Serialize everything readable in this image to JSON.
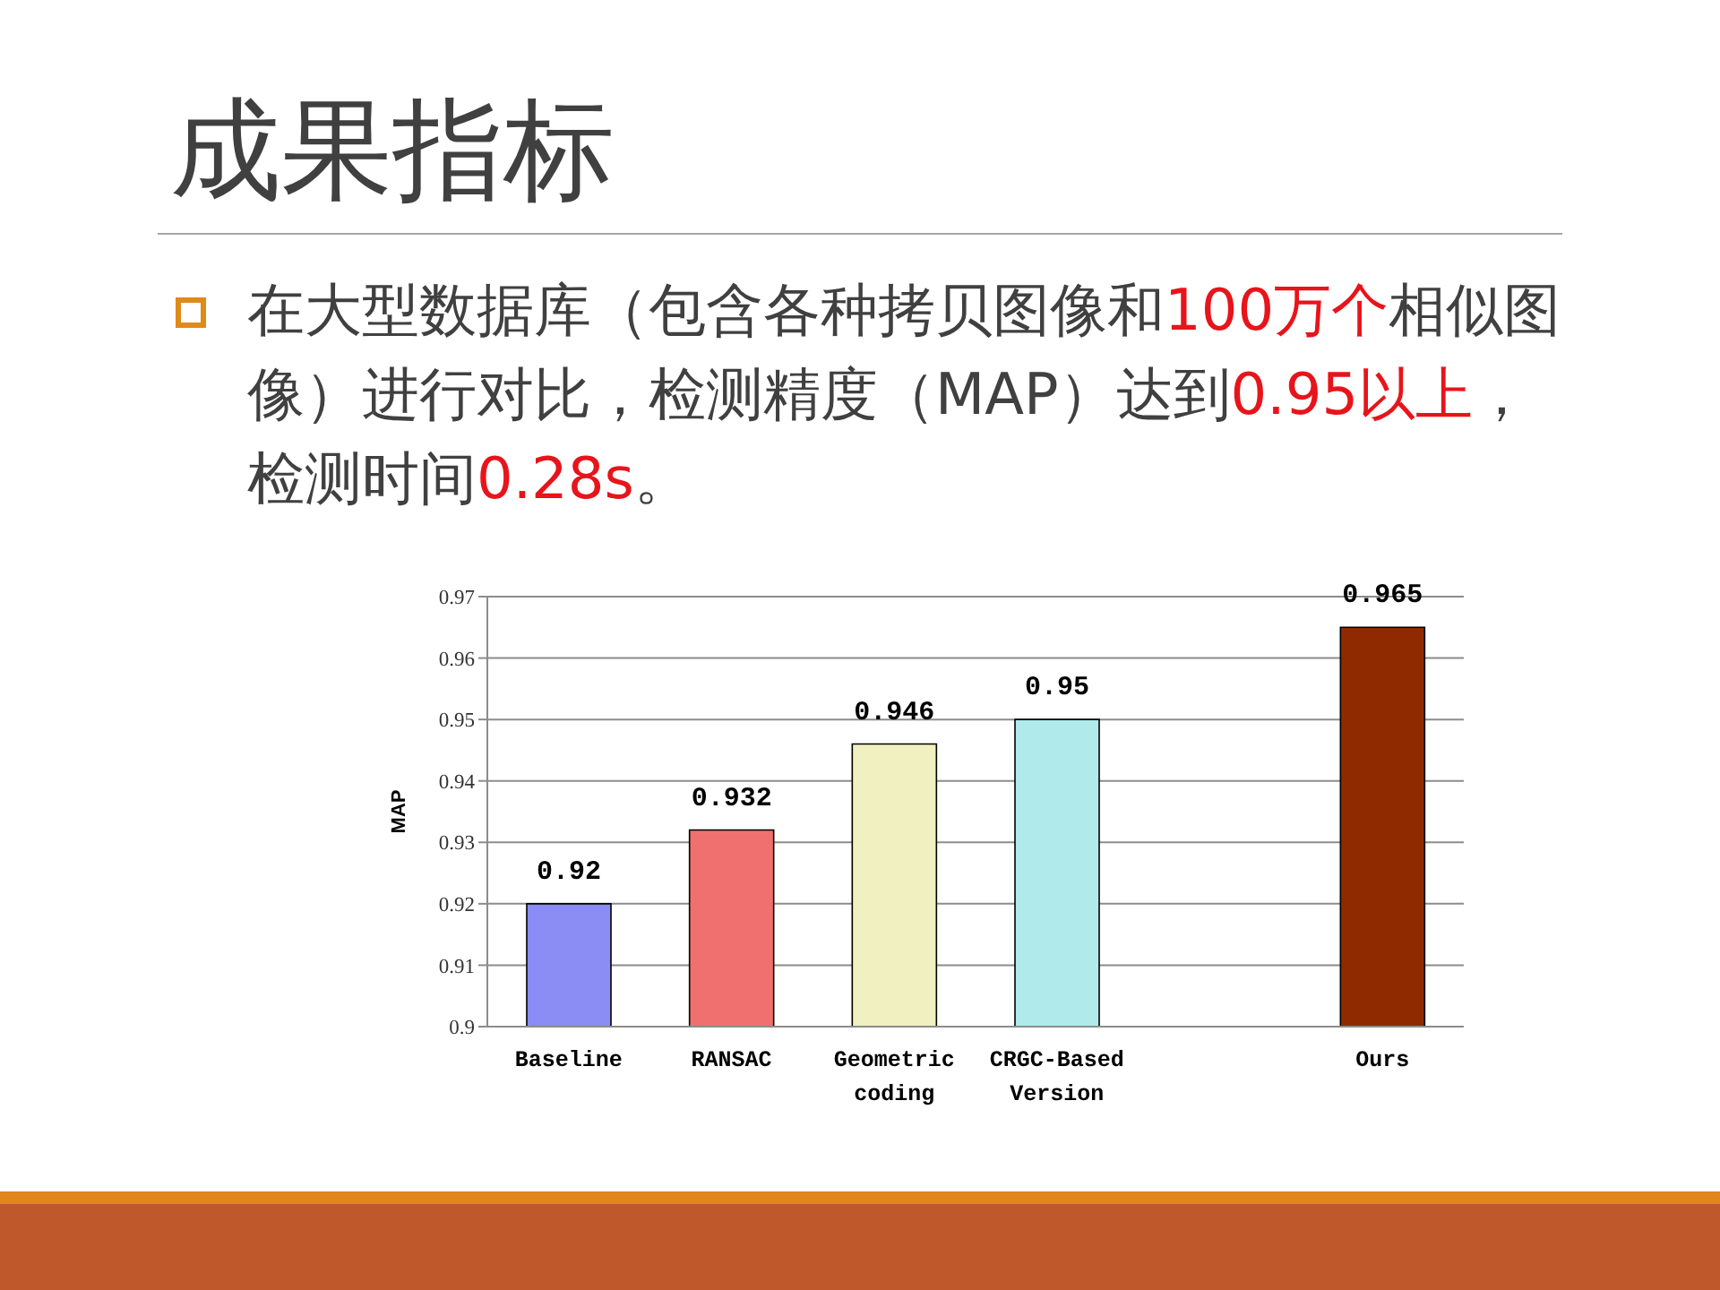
{
  "chart_data": {
    "type": "bar",
    "title": "成果指标",
    "annotations": [
      "在大型数据库（包含各种拷贝图像和",
      "100万个",
      "相似图像）进行对比，检测精度（MAP）达到",
      "0.95以上",
      "，检测时间",
      "0.28s",
      "。"
    ],
    "categories": [
      "Baseline",
      "RANSAC",
      "Geometric coding",
      "CRGC-Based Version",
      null,
      "Ours"
    ],
    "values": [
      0.92,
      0.932,
      0.946,
      0.95,
      null,
      0.965
    ],
    "colors": [
      "#8c8cf5",
      "#f07070",
      "#f0f0c0",
      "#b0eaea",
      null,
      "#8f2a00"
    ],
    "ylabel": "MAP",
    "ylim": [
      0.9,
      0.97
    ],
    "yticks": [
      0.9,
      0.91,
      0.92,
      0.93,
      0.94,
      0.95,
      0.96,
      0.97
    ],
    "grid": "y",
    "data_labels": true
  }
}
